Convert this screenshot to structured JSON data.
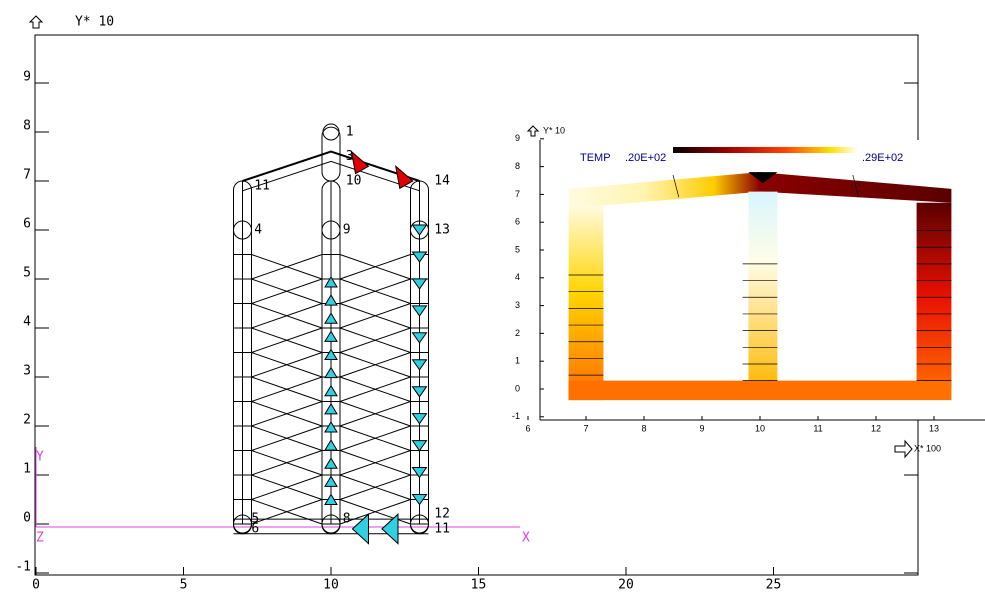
{
  "main": {
    "top_label": "Y*  10",
    "xticks": [
      0,
      5,
      10,
      15,
      20,
      25
    ],
    "yticks": [
      -1,
      0,
      1,
      2,
      3,
      4,
      5,
      6,
      7,
      8,
      9
    ],
    "axis_x": "X",
    "axis_y": "Y",
    "axis_z": "Z",
    "node_labels": [
      "1",
      "3",
      "10",
      "14",
      "11",
      "4",
      "9",
      "13",
      "12",
      "5",
      "6",
      "8",
      "11"
    ]
  },
  "inset": {
    "top_label": "Y* 10",
    "x_label": "X* 100",
    "legend_title": "TEMP",
    "legend_min": ".20E+02",
    "legend_max": ".29E+02",
    "xticks": [
      6,
      7,
      8,
      9,
      10,
      11,
      12,
      13
    ],
    "yticks": [
      -1,
      0,
      1,
      2,
      3,
      4,
      5,
      6,
      7,
      8,
      9
    ]
  }
}
